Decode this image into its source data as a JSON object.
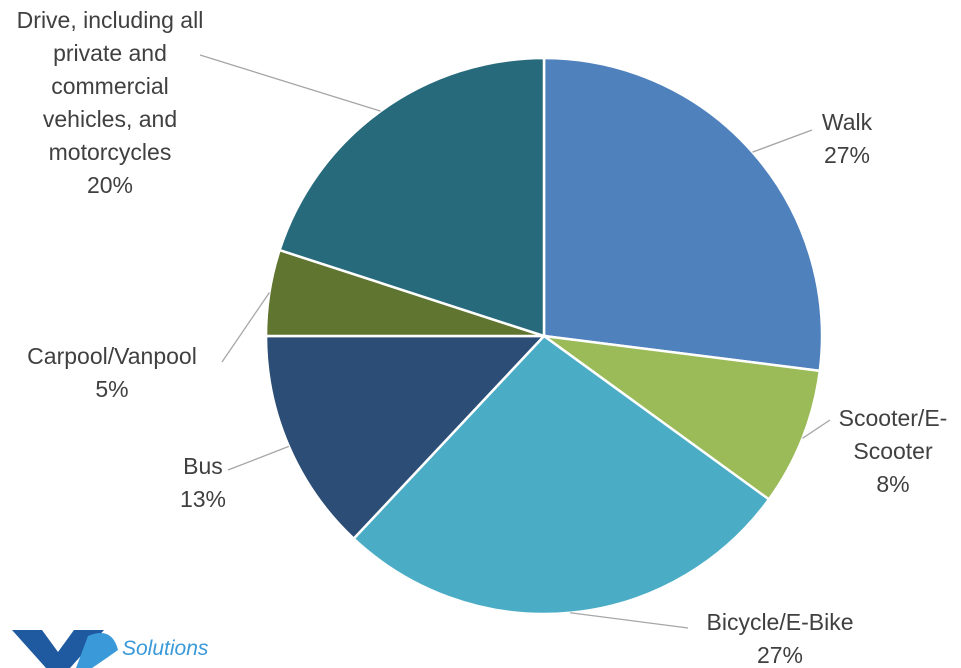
{
  "chart_data": {
    "type": "pie",
    "categories": [
      "Walk",
      "Scooter/E-Scooter",
      "Bicycle/E-Bike",
      "Bus",
      "Carpool/Vanpool",
      "Drive, including all private and commercial vehicles, and motorcycles"
    ],
    "values": [
      27,
      8,
      27,
      13,
      5,
      20
    ],
    "value_labels": [
      "27%",
      "8%",
      "27%",
      "13%",
      "5%",
      "20%"
    ],
    "colors": [
      "#4f81bd",
      "#9bbb59",
      "#4bacc6",
      "#2c4d75",
      "#5f7530",
      "#276a7c"
    ]
  },
  "logo": {
    "text": "Solutions"
  }
}
